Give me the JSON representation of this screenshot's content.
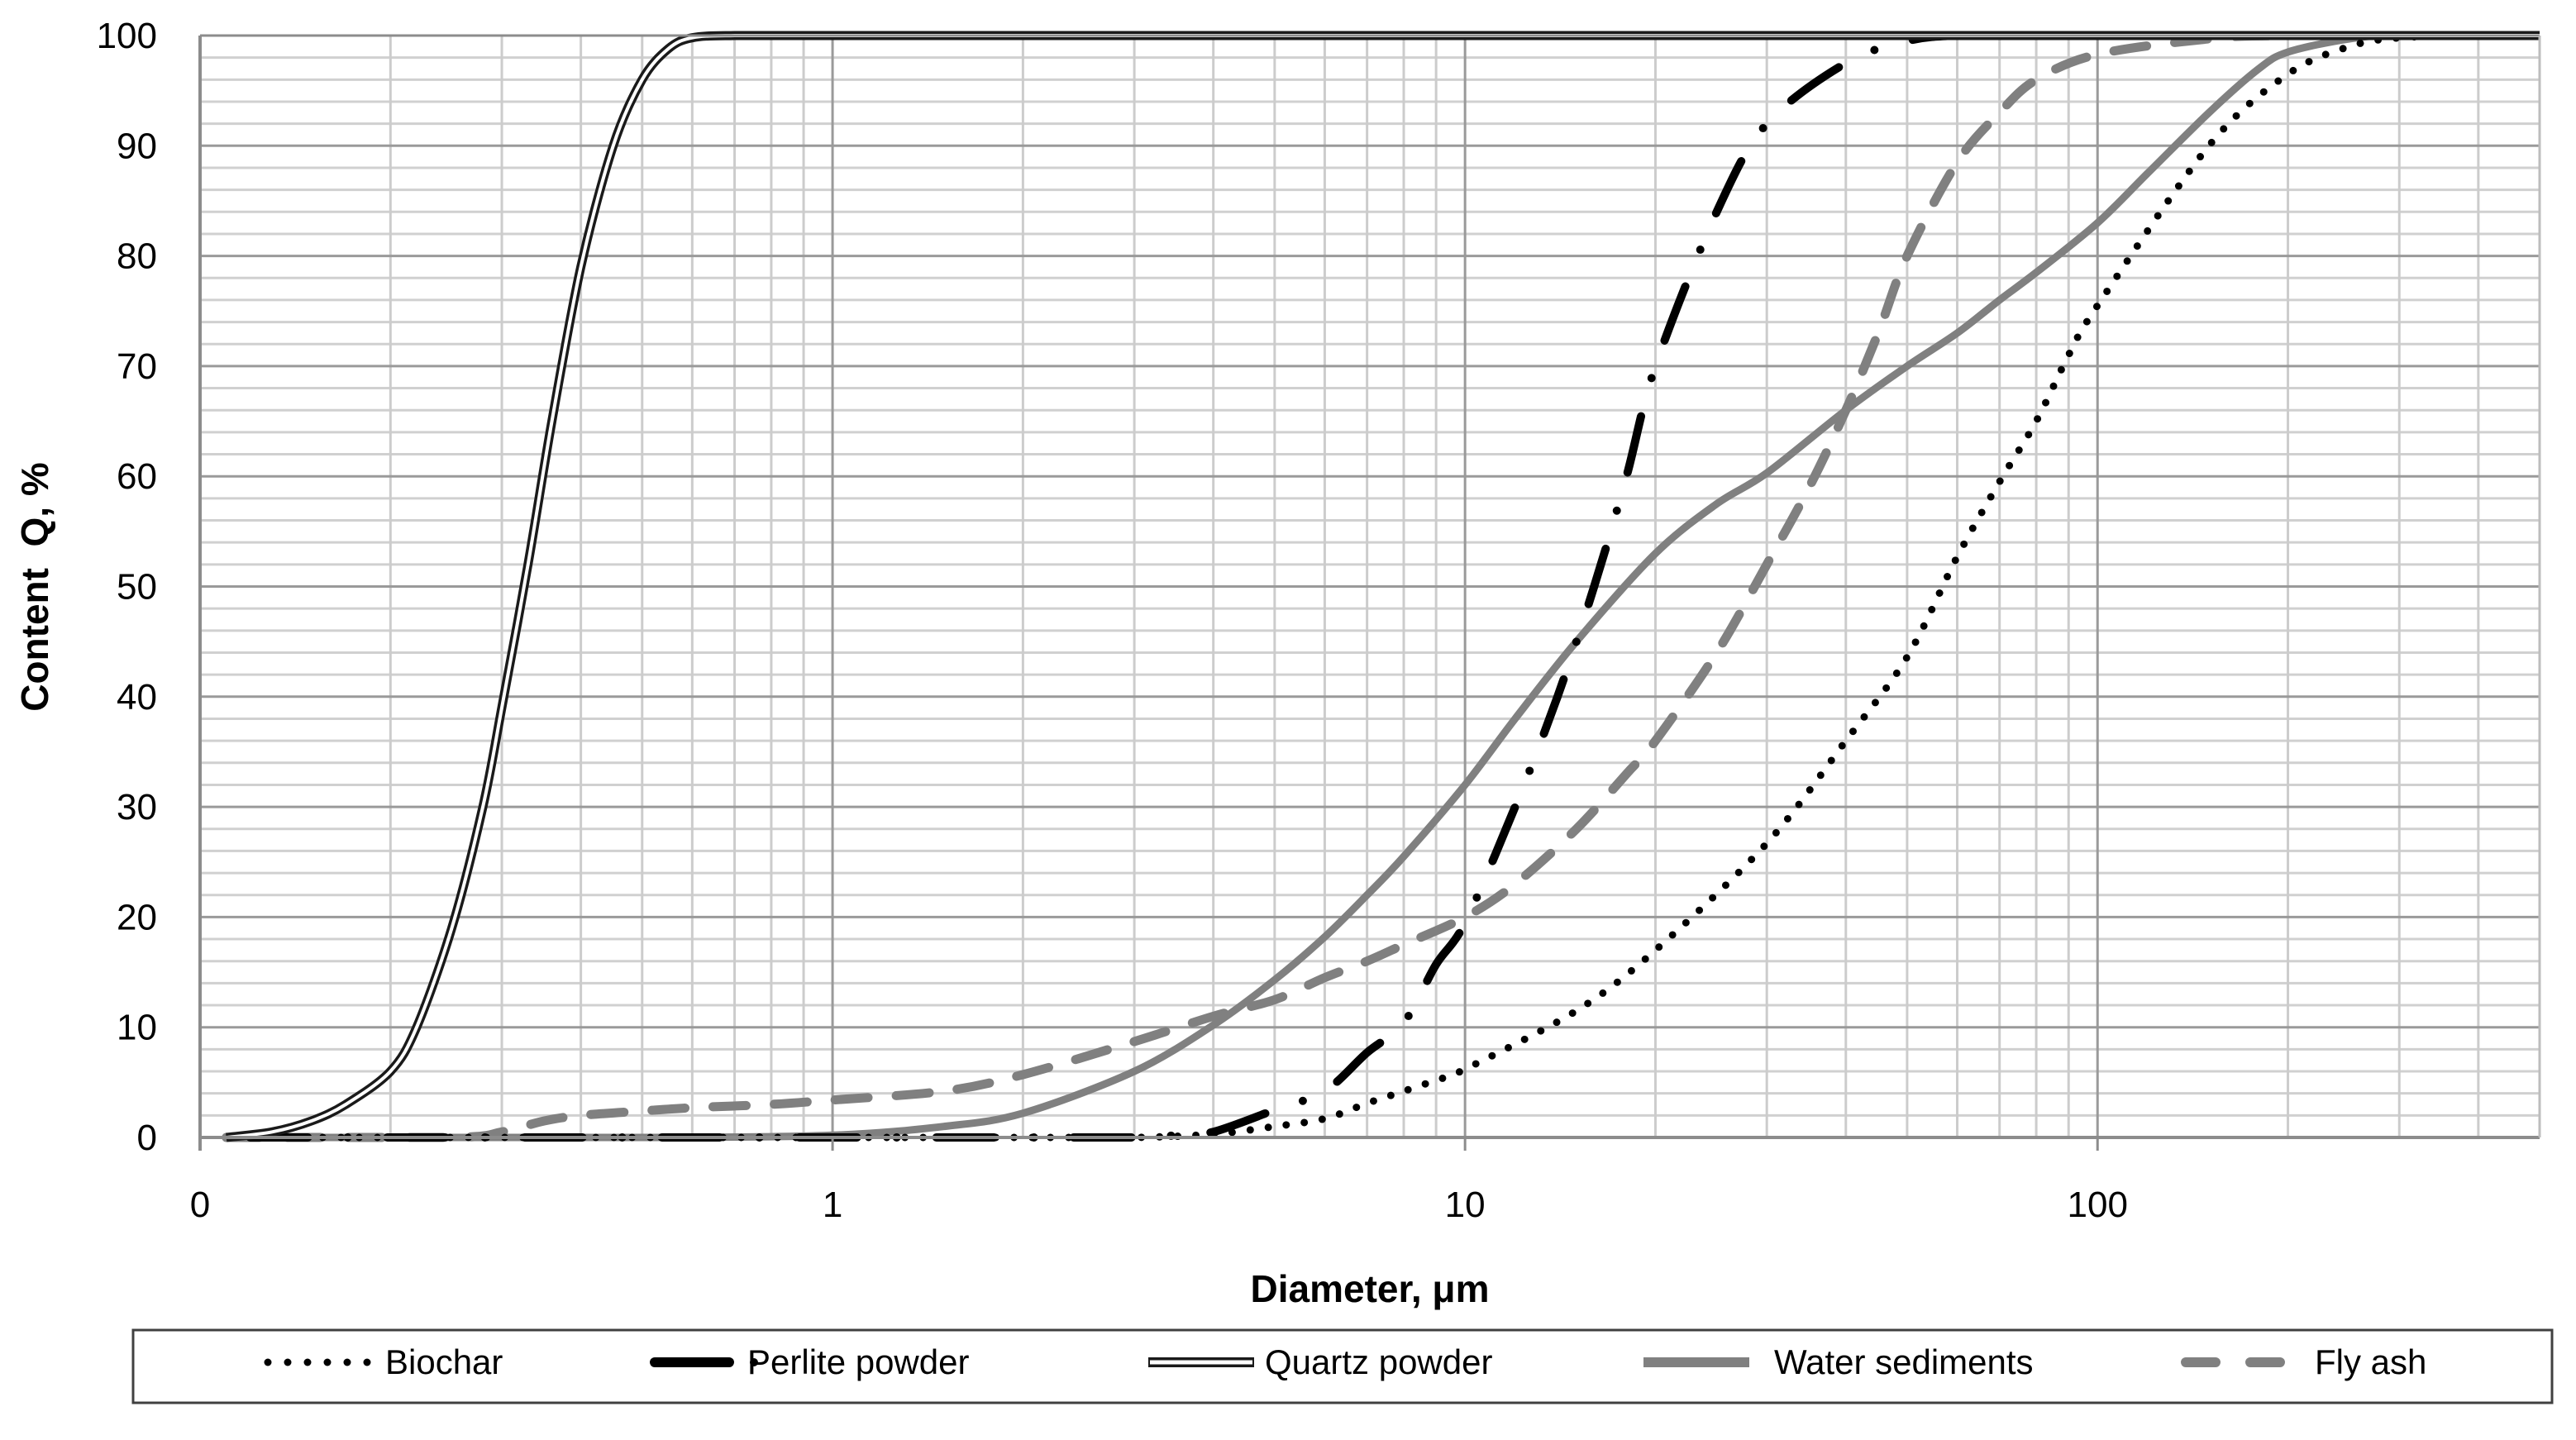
{
  "chart_data": {
    "type": "line",
    "title": "",
    "xlabel": "Diameter, μm",
    "ylabel": "Content  Q, %",
    "xscale": "log",
    "xlim": [
      0.1,
      500
    ],
    "ylim": [
      0,
      100
    ],
    "x_tick_positions": [
      0.1,
      1,
      10,
      100
    ],
    "x_tick_labels": [
      "0",
      "1",
      "10",
      "100"
    ],
    "y_ticks": [
      0,
      10,
      20,
      30,
      40,
      50,
      60,
      70,
      80,
      90,
      100
    ],
    "y_minor_step": 2,
    "grid": true,
    "legend_position": "bottom",
    "series": [
      {
        "name": "Biochar",
        "style": "dotted",
        "color": "#000000",
        "x": [
          0.12,
          1,
          2,
          3,
          4,
          5,
          6,
          7,
          8,
          9,
          10,
          15,
          20,
          30,
          40,
          50,
          60,
          70,
          80,
          90,
          100,
          150,
          200,
          250,
          300,
          400,
          500
        ],
        "y": [
          0,
          0,
          0,
          0,
          0.3,
          1.0,
          1.7,
          3.1,
          4.2,
          5.2,
          6.2,
          11.5,
          17,
          26.7,
          36,
          43.6,
          52.7,
          59.5,
          65,
          71,
          75.5,
          90,
          96.5,
          99,
          99.8,
          100,
          100
        ]
      },
      {
        "name": "Perlite powder",
        "style": "dash-dot",
        "color": "#000000",
        "x": [
          0.12,
          1,
          2,
          3,
          3.5,
          4,
          5,
          6,
          7,
          8,
          9,
          10,
          12,
          14,
          16,
          18,
          20,
          25,
          30,
          40,
          50,
          60,
          80,
          100,
          500
        ],
        "y": [
          0,
          0,
          0,
          0,
          0.2,
          0.5,
          2.5,
          4.2,
          7.7,
          10.4,
          15.7,
          19.5,
          30,
          40,
          50,
          60,
          70,
          84,
          92,
          97.5,
          99.5,
          100,
          100,
          100,
          100
        ]
      },
      {
        "name": "Quartz powder",
        "style": "double",
        "color": "#000000",
        "x": [
          0.11,
          0.13,
          0.15,
          0.17,
          0.2,
          0.22,
          0.25,
          0.28,
          0.3,
          0.33,
          0.36,
          0.4,
          0.45,
          0.5,
          0.55,
          0.6,
          0.7,
          1,
          10,
          100,
          500
        ],
        "y": [
          0,
          0.5,
          1.5,
          3,
          6,
          10,
          19,
          30,
          39,
          52,
          65,
          79,
          90,
          96,
          98.8,
          99.8,
          100,
          100,
          100,
          100,
          100
        ]
      },
      {
        "name": "Water sediments",
        "style": "solid",
        "color": "#808080",
        "x": [
          0.11,
          0.5,
          1,
          1.5,
          2,
          3,
          4,
          5,
          6,
          7,
          8,
          10,
          12,
          15,
          20,
          25,
          30,
          40,
          50,
          60,
          70,
          80,
          100,
          120,
          150,
          180,
          200,
          250,
          300,
          500
        ],
        "y": [
          0,
          0,
          0.2,
          1,
          2.2,
          6,
          10.2,
          14.3,
          18.2,
          22,
          25.5,
          32,
          38,
          45,
          53,
          57.5,
          60.3,
          66,
          70,
          73,
          76,
          78.5,
          83,
          87.5,
          93,
          97,
          98.5,
          99.7,
          100,
          100
        ]
      },
      {
        "name": "Fly ash",
        "style": "dashed",
        "color": "#808080",
        "x": [
          0.11,
          0.25,
          0.3,
          0.35,
          0.4,
          0.5,
          0.6,
          0.8,
          1,
          1.5,
          2,
          3,
          4,
          5,
          6,
          7,
          8,
          10,
          12,
          15,
          18,
          20,
          25,
          30,
          35,
          40,
          45,
          50,
          60,
          70,
          80,
          100,
          150,
          200,
          500
        ],
        "y": [
          0,
          0,
          0.5,
          1.5,
          2,
          2.4,
          2.7,
          3,
          3.4,
          4.2,
          5.7,
          8.7,
          11,
          12.5,
          14.5,
          16,
          17.5,
          20,
          23,
          28,
          33,
          36,
          44,
          52,
          59,
          66,
          73,
          80,
          88.5,
          93,
          96,
          98.3,
          99.7,
          100,
          100
        ]
      }
    ]
  },
  "legend": {
    "items": [
      {
        "label": "Biochar"
      },
      {
        "label": "Perlite powder"
      },
      {
        "label": "Quartz powder"
      },
      {
        "label": "Water sediments"
      },
      {
        "label": "Fly ash"
      }
    ]
  },
  "axes": {
    "x_title": "Diameter, μm",
    "y_title": "Content  Q, %"
  }
}
